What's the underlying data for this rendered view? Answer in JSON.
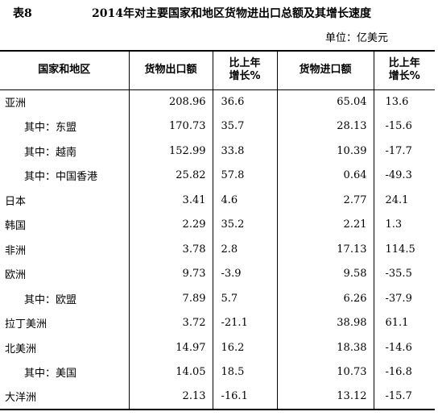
{
  "title": {
    "table_label": "表8",
    "text": "2014年对主要国家和地区货物进出口总额及其增长速度"
  },
  "unit": "单位：亿美元",
  "columns": {
    "region": "国家和地区",
    "export": "货物出口额",
    "export_growth": [
      "比上年",
      "增长%"
    ],
    "import": "货物进口额",
    "import_growth": [
      "比上年",
      "增长%"
    ]
  },
  "rows": [
    {
      "region": "亚洲",
      "sub": false,
      "export": "208.96",
      "export_growth": "36.6",
      "import": "65.04",
      "import_growth": "13.6"
    },
    {
      "region": "其中：东盟",
      "sub": true,
      "export": "170.73",
      "export_growth": "35.7",
      "import": "28.13",
      "import_growth": "-15.6"
    },
    {
      "region": "其中：越南",
      "sub": true,
      "export": "152.99",
      "export_growth": "33.8",
      "import": "10.39",
      "import_growth": "-17.7"
    },
    {
      "region": "其中：中国香港",
      "sub": true,
      "export": "25.82",
      "export_growth": "57.8",
      "import": "0.64",
      "import_growth": "-49.3"
    },
    {
      "region": "日本",
      "sub": false,
      "export": "3.41",
      "export_growth": "4.6",
      "import": "2.77",
      "import_growth": "24.1"
    },
    {
      "region": "韩国",
      "sub": false,
      "export": "2.29",
      "export_growth": "35.2",
      "import": "2.21",
      "import_growth": "1.3"
    },
    {
      "region": "非洲",
      "sub": false,
      "export": "3.78",
      "export_growth": "2.8",
      "import": "17.13",
      "import_growth": "114.5"
    },
    {
      "region": "欧洲",
      "sub": false,
      "export": "9.73",
      "export_growth": "-3.9",
      "import": "9.58",
      "import_growth": "-35.5"
    },
    {
      "region": "其中：欧盟",
      "sub": true,
      "export": "7.89",
      "export_growth": "5.7",
      "import": "6.26",
      "import_growth": "-37.9"
    },
    {
      "region": "拉丁美洲",
      "sub": false,
      "export": "3.72",
      "export_growth": "-21.1",
      "import": "38.98",
      "import_growth": "61.1"
    },
    {
      "region": "北美洲",
      "sub": false,
      "export": "14.97",
      "export_growth": "16.2",
      "import": "18.38",
      "import_growth": "-14.6"
    },
    {
      "region": "其中：美国",
      "sub": true,
      "export": "14.05",
      "export_growth": "18.5",
      "import": "10.73",
      "import_growth": "-16.8"
    },
    {
      "region": "大洋洲",
      "sub": false,
      "export": "2.13",
      "export_growth": "-16.1",
      "import": "13.12",
      "import_growth": "-15.7"
    }
  ]
}
